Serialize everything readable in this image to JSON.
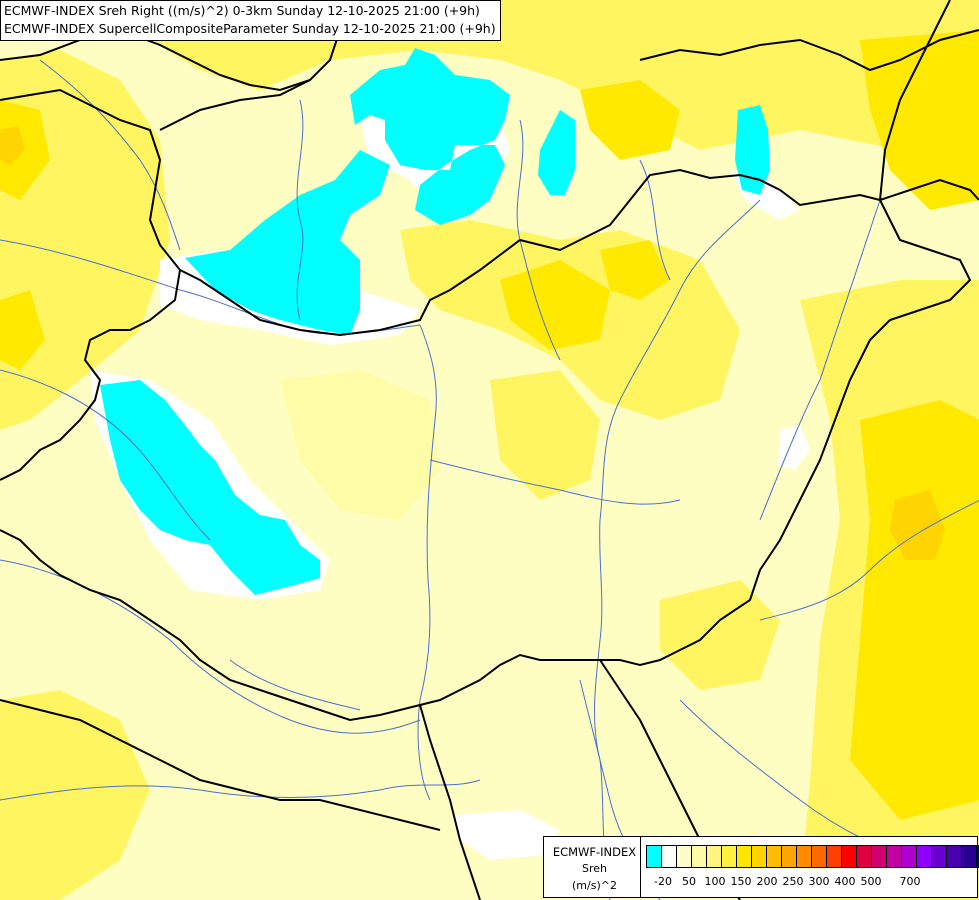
{
  "title": {
    "line1": "ECMWF-INDEX Sreh Right ((m/s)^2) 0-3km Sunday 12-10-2025 21:00 (+9h)",
    "line2": "ECMWF-INDEX SupercellCompositeParameter Sunday 12-10-2025 21:00 (+9h)"
  },
  "legend": {
    "product": "ECMWF-INDEX",
    "parameter": "Sreh",
    "unit": "(m/s)^2",
    "colors": [
      "#00ffff",
      "#ffffff",
      "#fffccc",
      "#fffaa8",
      "#fff580",
      "#fff040",
      "#ffe600",
      "#ffd200",
      "#ffbd00",
      "#ffa500",
      "#ff8c00",
      "#ff6a00",
      "#ff4000",
      "#ff0000",
      "#e00040",
      "#d00070",
      "#c000a0",
      "#b000d0",
      "#9000ff",
      "#6a00d0",
      "#4a00b0",
      "#2a0090",
      "#000080"
    ],
    "tick_labels": [
      "-20",
      "50",
      "100",
      "150",
      "200",
      "250",
      "300",
      "400",
      "500",
      "700"
    ]
  },
  "map": {
    "background_color": "#fffec2",
    "border_color": "#000000",
    "river_color": "#4a6fd0",
    "shading_colors": {
      "light": "#fffca8",
      "medium": "#fff560",
      "strong": "#ffe900",
      "deep": "#ffd400",
      "white": "#ffffff",
      "cyan": "#00ffff"
    }
  }
}
